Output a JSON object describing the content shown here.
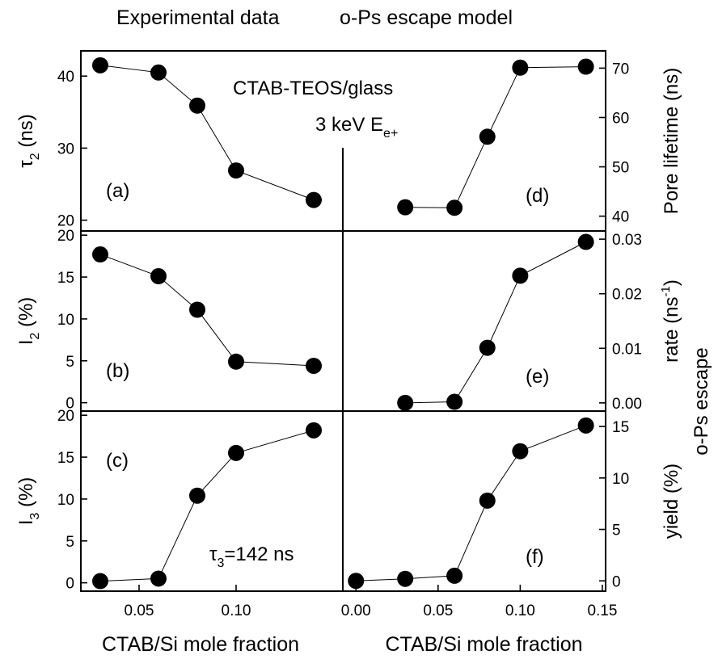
{
  "headers": {
    "left": "Experimental data",
    "right": "o-Ps escape model"
  },
  "annotations": {
    "sample": "CTAB-TEOS/glass",
    "energy_main": "3 keV E",
    "energy_sub": "e+",
    "tau3_symbol": "τ",
    "tau3_sub": "3",
    "tau3_value": "=142 ns"
  },
  "chart_data": [
    {
      "id": "a",
      "type": "scatter",
      "panel_label": "(a)",
      "ylabel_main": "τ",
      "ylabel_sub": "2",
      "ylabel_rest": " (ns)",
      "ylabel_side": "left",
      "x": [
        0.03,
        0.06,
        0.08,
        0.1,
        0.14
      ],
      "y": [
        41.5,
        40.5,
        35.9,
        26.9,
        22.8
      ],
      "xlim": [
        0.02,
        0.155
      ],
      "ylim": [
        18.5,
        43.5
      ],
      "yticks": [
        20,
        30,
        40
      ],
      "ytick_labels": [
        "20",
        "30",
        "40"
      ],
      "grid": false
    },
    {
      "id": "b",
      "type": "scatter",
      "panel_label": "(b)",
      "ylabel_main": "I",
      "ylabel_sub": "2",
      "ylabel_rest": " (%)",
      "ylabel_side": "left",
      "x": [
        0.03,
        0.06,
        0.08,
        0.1,
        0.14
      ],
      "y": [
        17.7,
        15.1,
        11.1,
        4.9,
        4.4
      ],
      "xlim": [
        0.02,
        0.155
      ],
      "ylim": [
        -1.0,
        20.5
      ],
      "yticks": [
        0,
        5,
        10,
        15,
        20
      ],
      "ytick_labels": [
        "0",
        "5",
        "10",
        "15",
        "20"
      ],
      "grid": false
    },
    {
      "id": "c",
      "type": "scatter",
      "panel_label": "(c)",
      "ylabel_main": "I",
      "ylabel_sub": "3",
      "ylabel_rest": " (%)",
      "ylabel_side": "left",
      "x": [
        0.03,
        0.06,
        0.08,
        0.1,
        0.14
      ],
      "y": [
        0.2,
        0.5,
        10.4,
        15.5,
        18.2
      ],
      "xlim": [
        0.02,
        0.155
      ],
      "ylim": [
        -1.0,
        20.5
      ],
      "yticks": [
        0,
        5,
        10,
        15,
        20
      ],
      "ytick_labels": [
        "0",
        "5",
        "10",
        "15",
        "20"
      ],
      "xticks": [
        0.05,
        0.1
      ],
      "xtick_labels": [
        "0.05",
        "0.10"
      ],
      "xlabel": "CTAB/Si mole fraction",
      "grid": false
    },
    {
      "id": "d",
      "type": "scatter",
      "panel_label": "(d)",
      "ylabel_main": "Pore lifetime (ns)",
      "ylabel_side": "right",
      "x": [
        0.03,
        0.06,
        0.08,
        0.1,
        0.14
      ],
      "y": [
        41.8,
        41.7,
        56.1,
        70.1,
        70.3
      ],
      "xlim": [
        -0.008,
        0.152
      ],
      "ylim": [
        37,
        73.5
      ],
      "yticks": [
        40,
        50,
        60,
        70
      ],
      "ytick_labels": [
        "40",
        "50",
        "60",
        "70"
      ],
      "grid": false
    },
    {
      "id": "e",
      "type": "scatter",
      "panel_label": "(e)",
      "ylabel_main": "rate (ns",
      "ylabel_sup": "-1",
      "ylabel_rest": ")",
      "ylabel_side": "right",
      "x": [
        0.03,
        0.06,
        0.08,
        0.1,
        0.14
      ],
      "y": [
        0.0,
        0.0002,
        0.0101,
        0.0233,
        0.0295
      ],
      "xlim": [
        -0.008,
        0.152
      ],
      "ylim": [
        -0.0015,
        0.0315
      ],
      "yticks": [
        0.0,
        0.01,
        0.02,
        0.03
      ],
      "ytick_labels": [
        "0.00",
        "0.01",
        "0.02",
        "0.03"
      ],
      "grid": false
    },
    {
      "id": "f",
      "type": "scatter",
      "panel_label": "(f)",
      "ylabel_main": "yield (%)",
      "ylabel_side": "right",
      "x": [
        0.0,
        0.03,
        0.06,
        0.08,
        0.1,
        0.14
      ],
      "y": [
        0.0,
        0.2,
        0.5,
        7.8,
        12.6,
        15.1
      ],
      "xlim": [
        -0.008,
        0.152
      ],
      "ylim": [
        -1.0,
        16.5
      ],
      "yticks": [
        0,
        5,
        10,
        15
      ],
      "ytick_labels": [
        "0",
        "5",
        "10",
        "15"
      ],
      "xticks": [
        0.0,
        0.05,
        0.1,
        0.15
      ],
      "xtick_labels": [
        "0.00",
        "0.05",
        "0.10",
        "0.15"
      ],
      "xlabel": "CTAB/Si mole fraction",
      "grid": false
    }
  ],
  "shared_right_label": "o-Ps escape"
}
